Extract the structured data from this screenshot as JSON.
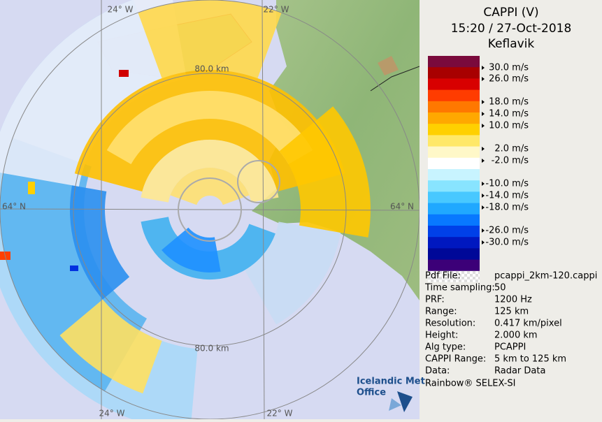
{
  "header": {
    "title": "CAPPI (V)",
    "time": "15:20 / 27-Oct-2018",
    "site": "Keflavik"
  },
  "map": {
    "labels": [
      "24° W",
      "22° W",
      "80.0 km",
      "64° N",
      "64° N",
      "80.0 km",
      "24° W",
      "22° W"
    ]
  },
  "legend": {
    "labels": [
      "30.0 m/s",
      "26.0 m/s",
      "18.0 m/s",
      "14.0 m/s",
      "10.0 m/s",
      "2.0 m/s",
      "-2.0 m/s",
      "-10.0 m/s",
      "-14.0 m/s",
      "-18.0 m/s",
      "-26.0 m/s",
      "-30.0 m/s"
    ],
    "colors": [
      "#7a0a3c",
      "#a80000",
      "#d80000",
      "#ff3c00",
      "#ff7800",
      "#ffa800",
      "#ffd000",
      "#ffe868",
      "#fff8c8",
      "#ffffff",
      "#c8f4ff",
      "#88e4ff",
      "#48c8ff",
      "#20a8ff",
      "#0878ff",
      "#0040e8",
      "#0018c0",
      "#000898",
      "#3c0078"
    ]
  },
  "info": {
    "rows": [
      [
        "Pdf File:",
        "pcappi_2km-120.cappi"
      ],
      [
        "Time sampling:",
        "50"
      ],
      [
        "PRF:",
        "1200 Hz"
      ],
      [
        "Range:",
        "125 km"
      ],
      [
        "Resolution:",
        "0.417 km/pixel"
      ],
      [
        "Height:",
        "2.000 km"
      ],
      [
        "Alg type:",
        "PCAPPI"
      ],
      [
        "CAPPI Range:",
        "5 km to 125 km"
      ],
      [
        "Data:",
        "Radar Data"
      ]
    ]
  },
  "logo": {
    "line1": "Icelandic Met",
    "line2": "Office"
  },
  "footer": "Rainbow® SELEX-SI"
}
